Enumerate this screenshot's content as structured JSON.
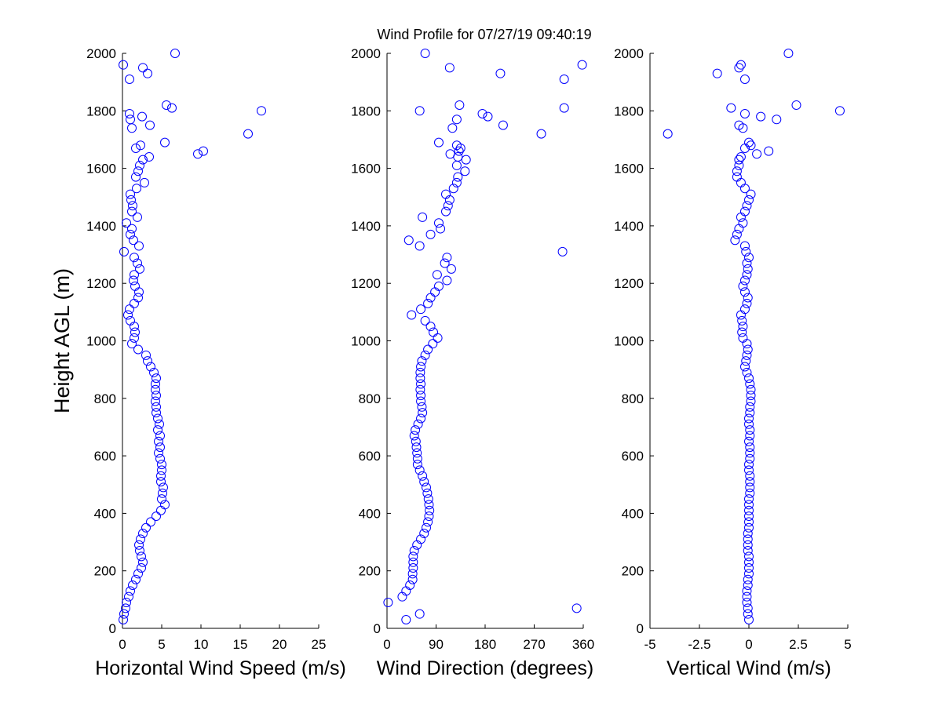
{
  "title": "Wind Profile for  07/27/19 09:40:19",
  "chart_data": [
    {
      "type": "scatter",
      "xlabel": "Horizontal Wind Speed (m/s)",
      "ylabel": "Height AGL (m)",
      "color": "#0000ff",
      "xlim": [
        0,
        25
      ],
      "xticks": [
        0,
        5,
        10,
        15,
        20,
        25
      ],
      "ylim": [
        0,
        2000
      ],
      "yticks": [
        0,
        200,
        400,
        600,
        800,
        1000,
        1200,
        1400,
        1600,
        1800,
        2000
      ],
      "x": [
        0.1,
        0.2,
        0.4,
        0.5,
        0.8,
        1.0,
        1.3,
        1.7,
        2.0,
        2.4,
        2.6,
        2.4,
        2.2,
        2.1,
        2.3,
        2.6,
        3.0,
        3.6,
        4.3,
        4.9,
        5.4,
        5.0,
        5.1,
        5.2,
        4.9,
        4.9,
        5.0,
        5.0,
        4.8,
        4.6,
        4.8,
        4.6,
        4.8,
        4.5,
        4.7,
        4.5,
        4.3,
        4.3,
        4.2,
        4.3,
        4.2,
        4.2,
        4.3,
        4.0,
        3.6,
        3.2,
        3.0,
        2.0,
        1.2,
        1.5,
        1.6,
        1.5,
        1.0,
        0.7,
        0.9,
        1.5,
        2.0,
        2.1,
        1.6,
        1.4,
        1.5,
        2.2,
        1.9,
        1.5,
        0.2,
        2.1,
        1.4,
        1.0,
        1.2,
        0.5,
        1.9,
        1.2,
        1.3,
        1.1,
        1.0,
        1.8,
        2.8,
        1.7,
        2.0,
        2.2,
        2.6,
        3.4,
        9.6,
        10.3,
        1.7,
        2.3,
        5.4,
        16.0,
        1.2,
        3.5,
        1.0,
        2.5,
        0.9,
        17.7,
        6.3,
        5.6,
        0.9,
        3.2,
        2.6,
        0.1,
        6.7
      ],
      "y": [
        30,
        50,
        70,
        90,
        110,
        130,
        150,
        170,
        190,
        210,
        230,
        250,
        270,
        290,
        310,
        330,
        350,
        370,
        390,
        410,
        430,
        450,
        470,
        490,
        510,
        530,
        550,
        570,
        590,
        610,
        630,
        650,
        670,
        690,
        710,
        730,
        750,
        770,
        790,
        810,
        830,
        850,
        870,
        890,
        910,
        930,
        950,
        970,
        990,
        1010,
        1030,
        1050,
        1070,
        1090,
        1110,
        1130,
        1150,
        1170,
        1190,
        1210,
        1230,
        1250,
        1270,
        1290,
        1310,
        1330,
        1350,
        1370,
        1390,
        1410,
        1430,
        1450,
        1470,
        1490,
        1510,
        1530,
        1550,
        1570,
        1590,
        1610,
        1630,
        1640,
        1650,
        1660,
        1670,
        1680,
        1690,
        1720,
        1740,
        1750,
        1770,
        1780,
        1790,
        1800,
        1810,
        1820,
        1910,
        1930,
        1950,
        1960,
        2000
      ]
    },
    {
      "type": "scatter",
      "xlabel": "Wind Direction (degrees)",
      "color": "#0000ff",
      "xlim": [
        0,
        360
      ],
      "xticks": [
        0,
        90,
        180,
        270,
        360
      ],
      "ylim": [
        0,
        2000
      ],
      "yticks": [
        0,
        200,
        400,
        600,
        800,
        1000,
        1200,
        1400,
        1600,
        1800,
        2000
      ],
      "x": [
        35,
        60,
        348,
        2,
        28,
        35,
        42,
        47,
        47,
        48,
        48,
        48,
        50,
        55,
        62,
        68,
        72,
        75,
        77,
        78,
        77,
        76,
        74,
        72,
        68,
        65,
        60,
        56,
        56,
        55,
        54,
        53,
        50,
        52,
        57,
        62,
        65,
        64,
        62,
        62,
        61,
        62,
        61,
        61,
        62,
        64,
        70,
        75,
        84,
        93,
        85,
        80,
        70,
        45,
        62,
        75,
        80,
        88,
        95,
        110,
        92,
        118,
        106,
        110,
        322,
        60,
        40,
        80,
        98,
        95,
        65,
        108,
        112,
        115,
        108,
        122,
        128,
        130,
        143,
        128,
        145,
        130,
        116,
        132,
        135,
        128,
        95,
        283,
        120,
        213,
        128,
        185,
        175,
        60,
        325,
        133,
        325,
        208,
        115,
        358,
        70
      ],
      "y": [
        30,
        50,
        70,
        90,
        110,
        130,
        150,
        170,
        190,
        210,
        230,
        250,
        270,
        290,
        310,
        330,
        350,
        370,
        390,
        410,
        430,
        450,
        470,
        490,
        510,
        530,
        550,
        570,
        590,
        610,
        630,
        650,
        670,
        690,
        710,
        730,
        750,
        770,
        790,
        810,
        830,
        850,
        870,
        890,
        910,
        930,
        950,
        970,
        990,
        1010,
        1030,
        1050,
        1070,
        1090,
        1110,
        1130,
        1150,
        1170,
        1190,
        1210,
        1230,
        1250,
        1270,
        1290,
        1310,
        1330,
        1350,
        1370,
        1390,
        1410,
        1430,
        1450,
        1470,
        1490,
        1510,
        1530,
        1550,
        1570,
        1590,
        1610,
        1630,
        1640,
        1650,
        1660,
        1670,
        1680,
        1690,
        1720,
        1740,
        1750,
        1770,
        1780,
        1790,
        1800,
        1810,
        1820,
        1910,
        1930,
        1950,
        1960,
        2000
      ]
    },
    {
      "type": "scatter",
      "xlabel": "Vertical Wind (m/s)",
      "color": "#0000ff",
      "xlim": [
        -5,
        5
      ],
      "xticks": [
        -5,
        -2.5,
        0,
        2.5,
        5
      ],
      "ylim": [
        0,
        2000
      ],
      "yticks": [
        0,
        200,
        400,
        600,
        800,
        1000,
        1200,
        1400,
        1600,
        1800,
        2000
      ],
      "x": [
        0,
        -0.05,
        -0.05,
        -0.1,
        -0.1,
        -0.1,
        -0.05,
        -0.05,
        0,
        0,
        0,
        0,
        -0.05,
        -0.05,
        -0.05,
        -0.05,
        0,
        0,
        0,
        0,
        0,
        0,
        0.05,
        0.05,
        0.05,
        0.05,
        0,
        0,
        0.05,
        0.05,
        0.05,
        0,
        0.05,
        0.05,
        0,
        0,
        0.05,
        0.05,
        0.1,
        0.1,
        0.1,
        0.05,
        0,
        -0.1,
        -0.2,
        -0.15,
        -0.1,
        -0.05,
        -0.1,
        -0.3,
        -0.35,
        -0.3,
        -0.35,
        -0.4,
        -0.2,
        -0.1,
        -0.05,
        -0.2,
        -0.3,
        -0.2,
        -0.1,
        -0.05,
        -0.1,
        0,
        -0.15,
        -0.2,
        -0.7,
        -0.6,
        -0.5,
        -0.3,
        -0.4,
        -0.2,
        -0.1,
        0,
        0.1,
        -0.2,
        -0.4,
        -0.6,
        -0.6,
        -0.5,
        -0.5,
        -0.4,
        0.4,
        1.0,
        -0.2,
        0.1,
        0,
        -4.1,
        -0.3,
        -0.5,
        1.4,
        0.6,
        -0.2,
        4.6,
        -0.9,
        2.4,
        -0.2,
        -1.6,
        -0.5,
        -0.4,
        2.0
      ],
      "y": [
        30,
        50,
        70,
        90,
        110,
        130,
        150,
        170,
        190,
        210,
        230,
        250,
        270,
        290,
        310,
        330,
        350,
        370,
        390,
        410,
        430,
        450,
        470,
        490,
        510,
        530,
        550,
        570,
        590,
        610,
        630,
        650,
        670,
        690,
        710,
        730,
        750,
        770,
        790,
        810,
        830,
        850,
        870,
        890,
        910,
        930,
        950,
        970,
        990,
        1010,
        1030,
        1050,
        1070,
        1090,
        1110,
        1130,
        1150,
        1170,
        1190,
        1210,
        1230,
        1250,
        1270,
        1290,
        1310,
        1330,
        1350,
        1370,
        1390,
        1410,
        1430,
        1450,
        1470,
        1490,
        1510,
        1530,
        1550,
        1570,
        1590,
        1610,
        1630,
        1640,
        1650,
        1660,
        1670,
        1680,
        1690,
        1720,
        1740,
        1750,
        1770,
        1780,
        1790,
        1800,
        1810,
        1820,
        1910,
        1930,
        1950,
        1960,
        2000
      ]
    }
  ]
}
